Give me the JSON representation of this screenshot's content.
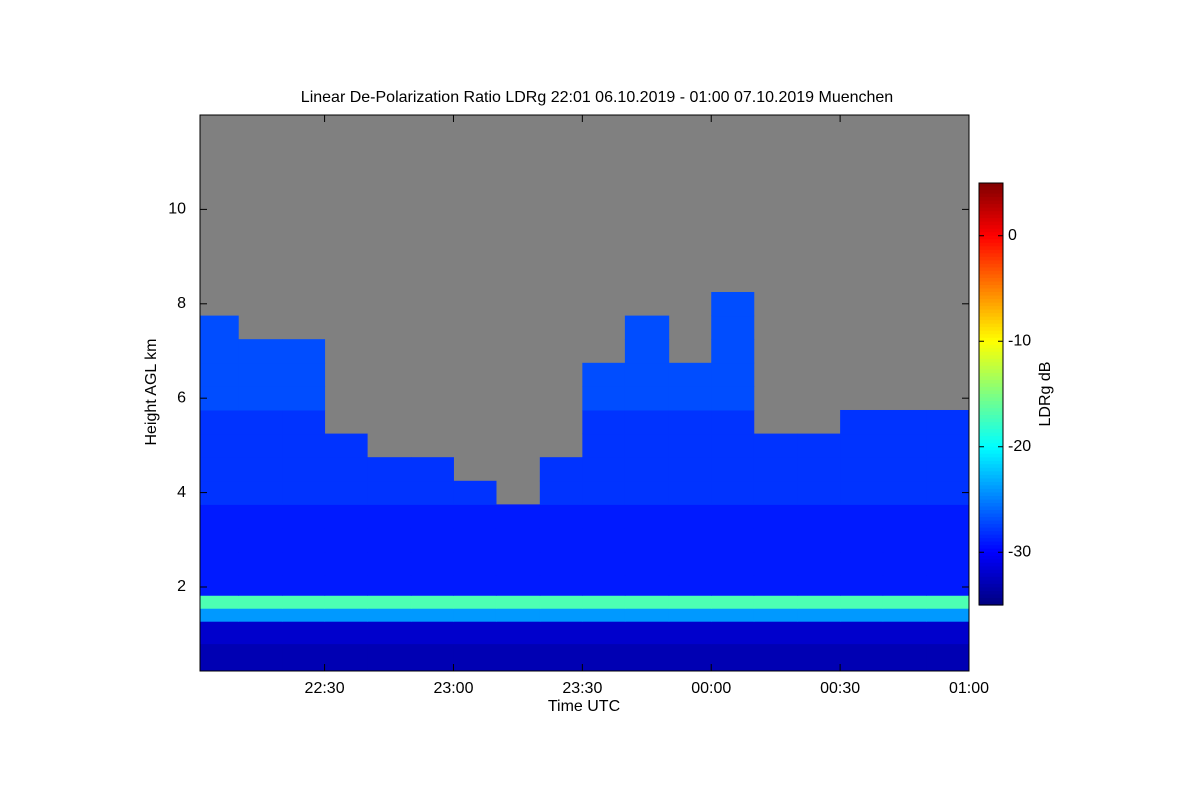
{
  "chart_data": {
    "type": "heatmap",
    "title": "Linear De-Polarization Ratio LDRg   22:01 06.10.2019 - 01:00 07.10.2019 Muenchen",
    "x_label": "Time UTC",
    "y_label": "Height AGL km",
    "colorbar_label": "LDRg dB",
    "colormap": "jet",
    "missing_color": "#808080",
    "x": [
      22.08,
      22.25,
      22.42,
      22.58,
      22.75,
      22.92,
      23.08,
      23.25,
      23.42,
      23.58,
      23.75,
      23.92,
      24.08,
      24.25,
      24.42,
      24.58,
      24.75,
      24.92
    ],
    "y": [
      0.5,
      1.1,
      1.45,
      1.65,
      2.0,
      2.5,
      3.0,
      3.5,
      4.0,
      4.5,
      5.0,
      5.5,
      6.0,
      6.5,
      7.0,
      7.5,
      8.0
    ],
    "z": [
      [
        -33,
        -33,
        -33,
        -33,
        -33,
        -33,
        -33,
        -33,
        -33,
        -33,
        -33,
        -33,
        -33,
        -33,
        -33,
        -33,
        -33,
        -33
      ],
      [
        -32,
        -32,
        -32,
        -32,
        -32,
        -32,
        -32,
        -32,
        -32,
        -32,
        -32,
        -32,
        -32,
        -32,
        -32,
        -32,
        -32,
        -32
      ],
      [
        -24,
        -24,
        -24,
        -24,
        -24,
        -24,
        -24,
        -24,
        -24,
        -24,
        -24,
        -24,
        -24,
        -24,
        -24,
        -24,
        -24,
        -24
      ],
      [
        -17,
        -17,
        -17,
        -17,
        -17,
        -17,
        -17,
        -17,
        -17,
        -17,
        -17,
        -17,
        -17,
        -17,
        -17,
        -17,
        -17,
        -17
      ],
      [
        -29,
        -29,
        -29,
        -29,
        -29,
        -29,
        -29,
        -29,
        -29,
        -29,
        -29,
        -29,
        -29,
        -29,
        -29,
        -29,
        -29,
        -29
      ],
      [
        -29,
        -29,
        -29,
        -29,
        -29,
        -29,
        -29,
        -29,
        -29,
        -29,
        -29,
        -29,
        -29,
        -29,
        -29,
        -29,
        -29,
        -29
      ],
      [
        -29,
        -29,
        -29,
        -29,
        -29,
        -29,
        -29,
        -29,
        -29,
        -29,
        -29,
        -29,
        -29,
        -29,
        -29,
        -29,
        -29,
        -29
      ],
      [
        -29,
        -29,
        -29,
        -29,
        -29,
        -29,
        -29,
        -29,
        -29,
        -29,
        -29,
        -29,
        -29,
        -29,
        -29,
        -29,
        -29,
        -29
      ],
      [
        -28,
        -28,
        -28,
        -28,
        -28,
        -28,
        -28,
        null,
        -28,
        -28,
        -28,
        -28,
        -28,
        -28,
        -28,
        -28,
        -28,
        -28
      ],
      [
        -28,
        -28,
        -28,
        -28,
        -28,
        -28,
        null,
        null,
        -28,
        -28,
        -28,
        -28,
        -28,
        -28,
        -28,
        -28,
        -28,
        -28
      ],
      [
        -28,
        -28,
        -28,
        -28,
        null,
        null,
        null,
        null,
        null,
        -28,
        -28,
        -28,
        -28,
        -28,
        -28,
        -28,
        -28,
        -28
      ],
      [
        -28,
        -28,
        -28,
        null,
        null,
        null,
        null,
        null,
        null,
        -28,
        -28,
        -28,
        -28,
        null,
        null,
        -28,
        -28,
        -28
      ],
      [
        -27,
        -27,
        -27,
        null,
        null,
        null,
        null,
        null,
        null,
        -27,
        -27,
        -27,
        -27,
        null,
        null,
        null,
        null,
        null
      ],
      [
        -27,
        -27,
        -27,
        null,
        null,
        null,
        null,
        null,
        null,
        -27,
        -27,
        -27,
        -27,
        null,
        null,
        null,
        null,
        null
      ],
      [
        -27,
        -27,
        -27,
        null,
        null,
        null,
        null,
        null,
        null,
        null,
        -27,
        null,
        -27,
        null,
        null,
        null,
        null,
        null
      ],
      [
        -27,
        null,
        null,
        null,
        null,
        null,
        null,
        null,
        null,
        null,
        -27,
        null,
        -27,
        null,
        null,
        null,
        null,
        null
      ],
      [
        null,
        null,
        null,
        null,
        null,
        null,
        null,
        null,
        null,
        null,
        null,
        null,
        -27,
        null,
        null,
        null,
        null,
        null
      ]
    ],
    "xlim": [
      22.0167,
      25
    ],
    "xticks": [
      {
        "value": 22.5,
        "label": "22:30"
      },
      {
        "value": 23,
        "label": "23:00"
      },
      {
        "value": 23.5,
        "label": "23:30"
      },
      {
        "value": 24,
        "label": "00:00"
      },
      {
        "value": 24.5,
        "label": "00:30"
      },
      {
        "value": 25,
        "label": "01:00"
      }
    ],
    "ylim": [
      0.22,
      12
    ],
    "yticks": [
      2,
      4,
      6,
      8,
      10
    ],
    "clim": [
      -35,
      5
    ],
    "cticks": [
      -30,
      -20,
      -10,
      0
    ]
  }
}
